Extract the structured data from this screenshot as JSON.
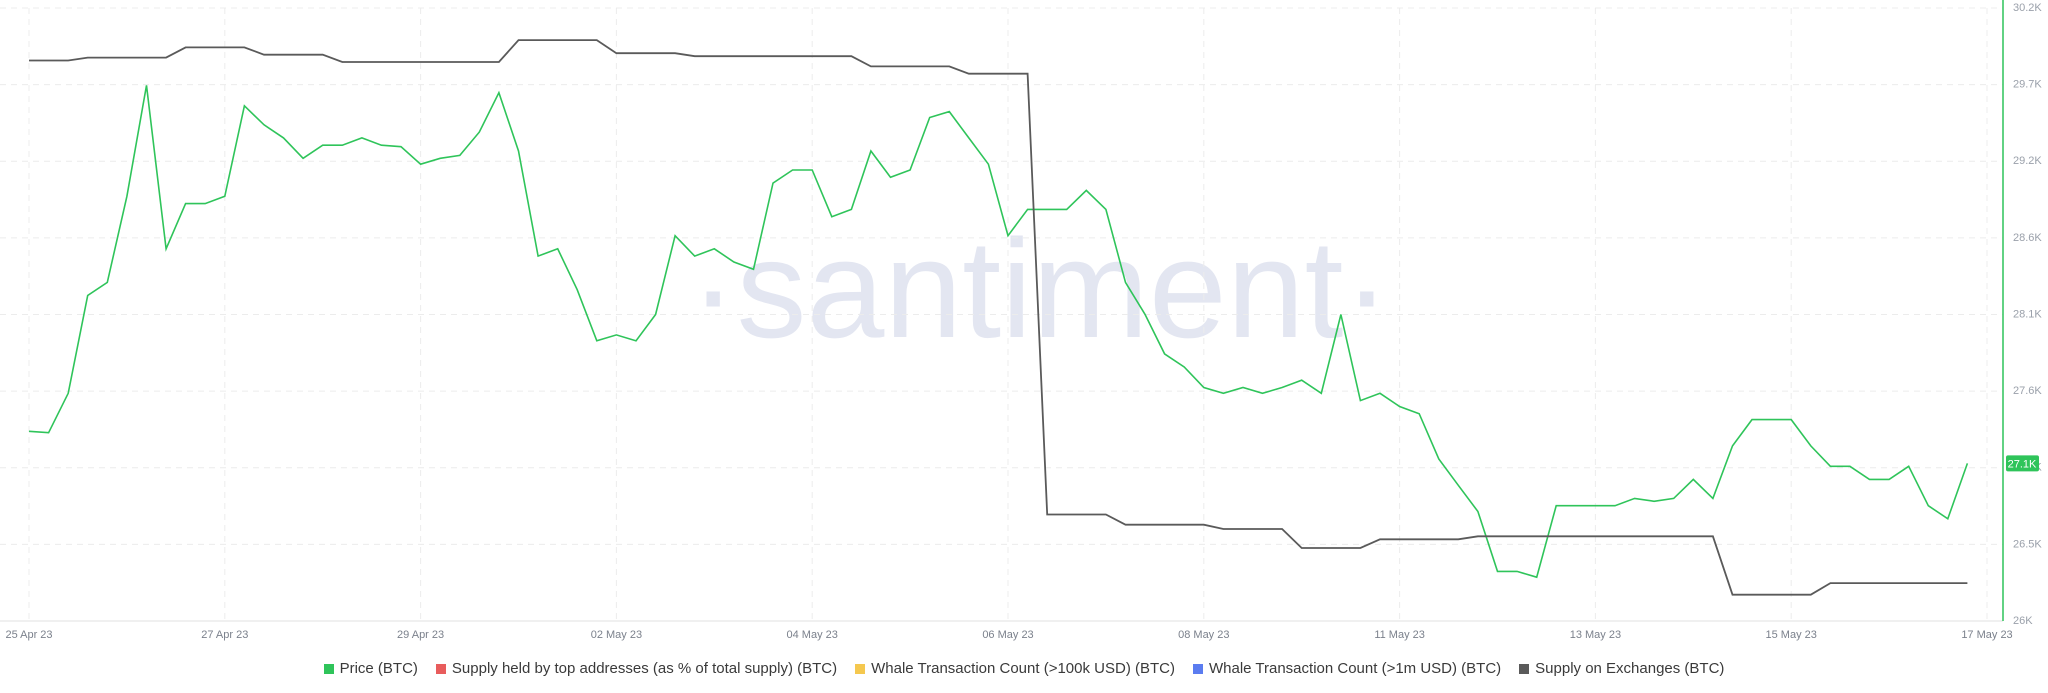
{
  "chart_data": {
    "type": "line",
    "watermark": "·santiment·",
    "categories": [
      "25 Apr 23",
      null,
      null,
      null,
      null,
      null,
      null,
      null,
      null,
      null,
      "27 Apr 23",
      null,
      null,
      null,
      null,
      null,
      null,
      null,
      null,
      null,
      "29 Apr 23",
      null,
      null,
      null,
      null,
      null,
      null,
      null,
      null,
      null,
      "02 May 23",
      null,
      null,
      null,
      null,
      null,
      null,
      null,
      null,
      null,
      "04 May 23",
      null,
      null,
      null,
      null,
      null,
      null,
      null,
      null,
      null,
      "06 May 23",
      null,
      null,
      null,
      null,
      null,
      null,
      null,
      null,
      null,
      "08 May 23",
      null,
      null,
      null,
      null,
      null,
      null,
      null,
      null,
      null,
      "11 May 23",
      null,
      null,
      null,
      null,
      null,
      null,
      null,
      null,
      null,
      "13 May 23",
      null,
      null,
      null,
      null,
      null,
      null,
      null,
      null,
      null,
      "15 May 23",
      null,
      null,
      null,
      null,
      null,
      null,
      null,
      null,
      null,
      "17 May 23"
    ],
    "series": [
      {
        "name": "Price (BTC)",
        "color": "#2fc45a",
        "values": [
          27300,
          27290,
          27560,
          28230,
          28320,
          28910,
          29670,
          28550,
          28860,
          28860,
          28910,
          29530,
          29400,
          29310,
          29170,
          29260,
          29260,
          29310,
          29260,
          29250,
          29130,
          29170,
          29190,
          29350,
          29620,
          29220,
          28500,
          28550,
          28270,
          27920,
          27960,
          27920,
          28100,
          28640,
          28500,
          28550,
          28460,
          28410,
          29000,
          29090,
          29090,
          28770,
          28820,
          29220,
          29040,
          29090,
          29450,
          29490,
          29310,
          29130,
          28640,
          28820,
          28820,
          28820,
          28950,
          28820,
          28320,
          28100,
          27830,
          27740,
          27600,
          27560,
          27600,
          27560,
          27600,
          27650,
          27560,
          28100,
          27510,
          27560,
          27470,
          27420,
          27110,
          26930,
          26750,
          26340,
          26340,
          26300,
          26790,
          26790,
          26790,
          26790,
          26840,
          26820,
          26840,
          26970,
          26840,
          27200,
          27380,
          27380,
          27380,
          27200,
          27060,
          27060,
          26970,
          26970,
          27060,
          26790,
          26700,
          27080,
          null
        ],
        "value_labels": [
          null,
          null,
          null,
          null,
          null,
          null,
          null,
          null,
          null,
          null,
          null,
          null,
          null,
          null,
          null,
          null,
          null,
          null,
          null,
          null,
          null,
          null,
          null,
          null,
          null,
          null,
          null,
          null,
          null,
          null,
          null,
          null,
          null,
          null,
          null,
          null,
          null,
          null,
          null,
          null,
          null,
          null,
          null,
          null,
          null,
          null,
          null,
          null,
          null,
          null,
          null,
          null,
          null,
          null,
          null,
          null,
          null,
          null,
          null,
          null,
          null,
          null,
          null,
          null,
          null,
          null,
          null,
          null,
          null,
          null,
          null,
          null,
          null,
          null,
          null,
          null,
          null,
          null,
          null,
          null,
          null,
          null,
          null,
          null,
          null,
          null,
          null,
          null,
          null,
          null,
          null,
          null,
          null,
          null,
          null,
          null,
          null,
          null,
          null,
          "27.1K",
          null
        ]
      },
      {
        "name": "Supply held by top addresses (as % of total supply) (BTC)",
        "color": "#e85c5c",
        "values": [
          null,
          null,
          null,
          null,
          null,
          null,
          null,
          null,
          null,
          null,
          null,
          null,
          null,
          null,
          null,
          null,
          null,
          null,
          null,
          null,
          null,
          null,
          null,
          null,
          null,
          null,
          null,
          null,
          null,
          null,
          null,
          null,
          null,
          null,
          null,
          null,
          null,
          null,
          null,
          null,
          null,
          null,
          null,
          null,
          null,
          null,
          null,
          null,
          null,
          null,
          null,
          null,
          null,
          null,
          null,
          null,
          null,
          null,
          null,
          null,
          null,
          null,
          null,
          null,
          null,
          null,
          null,
          null,
          null,
          null,
          null,
          null,
          null,
          null,
          null,
          null,
          null,
          null,
          null,
          null,
          null,
          null,
          null,
          null,
          null,
          null,
          null,
          null,
          null,
          null,
          null,
          null,
          null,
          null,
          null,
          null,
          null,
          null,
          null,
          null,
          null
        ]
      },
      {
        "name": "Whale Transaction Count (>100k USD) (BTC)",
        "color": "#f5c84f",
        "values": [
          null,
          null,
          null,
          null,
          null,
          null,
          null,
          null,
          null,
          null,
          null,
          null,
          null,
          null,
          null,
          null,
          null,
          null,
          null,
          null,
          null,
          null,
          null,
          null,
          null,
          null,
          null,
          null,
          null,
          null,
          null,
          null,
          null,
          null,
          null,
          null,
          null,
          null,
          null,
          null,
          null,
          null,
          null,
          null,
          null,
          null,
          null,
          null,
          null,
          null,
          null,
          null,
          null,
          null,
          null,
          null,
          null,
          null,
          null,
          null,
          null,
          null,
          null,
          null,
          null,
          null,
          null,
          null,
          null,
          null,
          null,
          null,
          null,
          null,
          null,
          null,
          null,
          null,
          null,
          null,
          null,
          null,
          null,
          null,
          null,
          null,
          null,
          null,
          null,
          null,
          null,
          null,
          null,
          null,
          null,
          null,
          null,
          null,
          null,
          null,
          null
        ]
      },
      {
        "name": "Whale Transaction Count (>1m USD) (BTC)",
        "color": "#5b7cf0",
        "values": [
          null,
          null,
          null,
          null,
          null,
          null,
          null,
          null,
          null,
          null,
          null,
          null,
          null,
          null,
          null,
          null,
          null,
          null,
          null,
          null,
          null,
          null,
          null,
          null,
          null,
          null,
          null,
          null,
          null,
          null,
          null,
          null,
          null,
          null,
          null,
          null,
          null,
          null,
          null,
          null,
          null,
          null,
          null,
          null,
          null,
          null,
          null,
          null,
          null,
          null,
          null,
          null,
          null,
          null,
          null,
          null,
          null,
          null,
          null,
          null,
          null,
          null,
          null,
          null,
          null,
          null,
          null,
          null,
          null,
          null,
          null,
          null,
          null,
          null,
          null,
          null,
          null,
          null,
          null,
          null,
          null,
          null,
          null,
          null,
          null,
          null,
          null,
          null,
          null,
          null,
          null,
          null,
          null,
          null,
          null,
          null,
          null,
          null,
          null,
          null,
          null
        ]
      },
      {
        "name": "Supply on Exchanges (BTC)",
        "color": "#5a5a5a",
        "values": [
          29840,
          29840,
          29840,
          29860,
          29860,
          29860,
          29860,
          29860,
          29930,
          29930,
          29930,
          29930,
          29880,
          29880,
          29880,
          29880,
          29830,
          29830,
          29830,
          29830,
          29830,
          29830,
          29830,
          29830,
          29830,
          29980,
          29980,
          29980,
          29980,
          29980,
          29890,
          29890,
          29890,
          29890,
          29870,
          29870,
          29870,
          29870,
          29870,
          29870,
          29870,
          29870,
          29870,
          29800,
          29800,
          29800,
          29800,
          29800,
          29750,
          29750,
          29750,
          29750,
          26730,
          26730,
          26730,
          26730,
          26660,
          26660,
          26660,
          26660,
          26660,
          26630,
          26630,
          26630,
          26630,
          26500,
          26500,
          26500,
          26500,
          26560,
          26560,
          26560,
          26560,
          26560,
          26580,
          26580,
          26580,
          26580,
          26580,
          26580,
          26580,
          26580,
          26580,
          26580,
          26580,
          26580,
          26580,
          26180,
          26180,
          26180,
          26180,
          26180,
          26260,
          26260,
          26260,
          26260,
          26260,
          26260,
          26260,
          26260,
          null
        ]
      }
    ],
    "ylim": [
      26000,
      30200
    ],
    "yticks": [
      {
        "value": 26000,
        "label": "26K"
      },
      {
        "value": 26525,
        "label": "26.5K"
      },
      {
        "value": 27050,
        "label": "27.1K"
      },
      {
        "value": 27575,
        "label": "27.6K"
      },
      {
        "value": 28100,
        "label": "28.1K"
      },
      {
        "value": 28625,
        "label": "28.6K"
      },
      {
        "value": 29150,
        "label": "29.2K"
      },
      {
        "value": 29675,
        "label": "29.7K"
      },
      {
        "value": 30200,
        "label": "30.2K"
      }
    ],
    "grid": true
  }
}
